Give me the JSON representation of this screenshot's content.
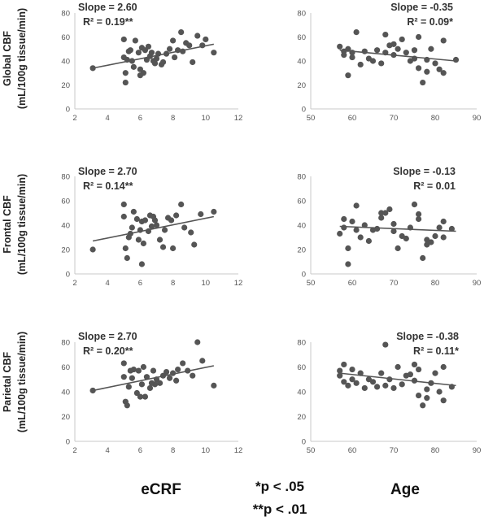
{
  "row_labels": [
    {
      "line1": "Global CBF",
      "line2": "(mL/100g tissue/min)"
    },
    {
      "line1": "Frontal CBF",
      "line2": "(mL/100g tissue/min)"
    },
    {
      "line1": "Parietal CBF",
      "line2": "(mL/100g tissue/min)"
    }
  ],
  "column_labels": {
    "ecrf": "eCRF",
    "age": "Age"
  },
  "significance": {
    "line1": "*p < .05",
    "line2": "**p < .01"
  },
  "colors": {
    "points": "#555555",
    "trend": "#555555",
    "axis": "#c8c8c8"
  },
  "chart_data": [
    {
      "type": "scatter",
      "region": "Global CBF",
      "predictor": "eCRF",
      "xlim": [
        2,
        12
      ],
      "xticks": [
        2,
        4,
        6,
        8,
        10,
        12
      ],
      "ylim": [
        0,
        80
      ],
      "yticks": [
        0,
        20,
        40,
        60,
        80
      ],
      "slope_label": "Slope = 2.60",
      "r2_label": "R² = 0.19**",
      "trend": {
        "x1": 3.1,
        "y1": 34,
        "x2": 10.5,
        "y2": 54
      },
      "points": [
        [
          3.1,
          34
        ],
        [
          5.0,
          58
        ],
        [
          5.0,
          43
        ],
        [
          5.1,
          30
        ],
        [
          5.1,
          22
        ],
        [
          5.2,
          41
        ],
        [
          5.3,
          48
        ],
        [
          5.4,
          49
        ],
        [
          5.5,
          40
        ],
        [
          5.6,
          35
        ],
        [
          5.7,
          57
        ],
        [
          5.9,
          47
        ],
        [
          6.0,
          28
        ],
        [
          6.0,
          33
        ],
        [
          6.1,
          51
        ],
        [
          6.2,
          30
        ],
        [
          6.3,
          49
        ],
        [
          6.4,
          41
        ],
        [
          6.5,
          52
        ],
        [
          6.6,
          44
        ],
        [
          6.7,
          47
        ],
        [
          6.8,
          40
        ],
        [
          6.9,
          38
        ],
        [
          7.0,
          42
        ],
        [
          7.1,
          46
        ],
        [
          7.3,
          37
        ],
        [
          7.4,
          39
        ],
        [
          7.6,
          46
        ],
        [
          7.8,
          50
        ],
        [
          8.0,
          57
        ],
        [
          8.1,
          43
        ],
        [
          8.3,
          49
        ],
        [
          8.5,
          64
        ],
        [
          8.6,
          48
        ],
        [
          8.8,
          55
        ],
        [
          9.0,
          53
        ],
        [
          9.2,
          39
        ],
        [
          9.5,
          61
        ],
        [
          9.8,
          53
        ],
        [
          10.0,
          58
        ],
        [
          10.5,
          47
        ]
      ]
    },
    {
      "type": "scatter",
      "region": "Global CBF",
      "predictor": "Age",
      "xlim": [
        50,
        90
      ],
      "xticks": [
        50,
        60,
        70,
        80,
        90
      ],
      "ylim": [
        0,
        80
      ],
      "yticks": [
        0,
        20,
        40,
        60,
        80
      ],
      "slope_label": "Slope = -0.35",
      "r2_label": "R² = 0.09*",
      "trend": {
        "x1": 57,
        "y1": 49,
        "x2": 85,
        "y2": 40
      },
      "points": [
        [
          57,
          52
        ],
        [
          58,
          48
        ],
        [
          58,
          45
        ],
        [
          59,
          50
        ],
        [
          59,
          28
        ],
        [
          60,
          47
        ],
        [
          60,
          43
        ],
        [
          61,
          64
        ],
        [
          62,
          37
        ],
        [
          63,
          48
        ],
        [
          64,
          42
        ],
        [
          65,
          40
        ],
        [
          66,
          49
        ],
        [
          67,
          38
        ],
        [
          68,
          47
        ],
        [
          68,
          62
        ],
        [
          69,
          53
        ],
        [
          70,
          45
        ],
        [
          70,
          54
        ],
        [
          71,
          50
        ],
        [
          72,
          58
        ],
        [
          73,
          47
        ],
        [
          74,
          40
        ],
        [
          75,
          49
        ],
        [
          75,
          42
        ],
        [
          76,
          60
        ],
        [
          76,
          34
        ],
        [
          77,
          22
        ],
        [
          78,
          41
        ],
        [
          78,
          31
        ],
        [
          79,
          50
        ],
        [
          80,
          38
        ],
        [
          81,
          33
        ],
        [
          82,
          30
        ],
        [
          82,
          57
        ],
        [
          85,
          41
        ]
      ]
    },
    {
      "type": "scatter",
      "region": "Frontal CBF",
      "predictor": "eCRF",
      "xlim": [
        2,
        12
      ],
      "xticks": [
        2,
        4,
        6,
        8,
        10,
        12
      ],
      "ylim": [
        0,
        80
      ],
      "yticks": [
        0,
        20,
        40,
        60,
        80
      ],
      "slope_label": "Slope = 2.70",
      "r2_label": "R² = 0.14**",
      "trend": {
        "x1": 3.1,
        "y1": 27,
        "x2": 10.5,
        "y2": 47
      },
      "points": [
        [
          3.1,
          20
        ],
        [
          5.0,
          57
        ],
        [
          5.0,
          47
        ],
        [
          5.1,
          21
        ],
        [
          5.2,
          13
        ],
        [
          5.3,
          30
        ],
        [
          5.4,
          33
        ],
        [
          5.5,
          38
        ],
        [
          5.6,
          51
        ],
        [
          5.8,
          45
        ],
        [
          5.9,
          28
        ],
        [
          6.0,
          36
        ],
        [
          6.1,
          8
        ],
        [
          6.1,
          43
        ],
        [
          6.2,
          25
        ],
        [
          6.3,
          44
        ],
        [
          6.5,
          35
        ],
        [
          6.6,
          48
        ],
        [
          6.7,
          39
        ],
        [
          6.8,
          47
        ],
        [
          6.9,
          44
        ],
        [
          7.0,
          40
        ],
        [
          7.2,
          28
        ],
        [
          7.4,
          22
        ],
        [
          7.5,
          36
        ],
        [
          7.7,
          46
        ],
        [
          7.9,
          44
        ],
        [
          8.0,
          21
        ],
        [
          8.2,
          48
        ],
        [
          8.5,
          57
        ],
        [
          8.7,
          38
        ],
        [
          9.1,
          34
        ],
        [
          9.3,
          24
        ],
        [
          9.7,
          49
        ],
        [
          10.5,
          51
        ]
      ]
    },
    {
      "type": "scatter",
      "region": "Frontal CBF",
      "predictor": "Age",
      "xlim": [
        50,
        90
      ],
      "xticks": [
        50,
        60,
        70,
        80,
        90
      ],
      "ylim": [
        0,
        80
      ],
      "yticks": [
        0,
        20,
        40,
        60,
        80
      ],
      "slope_label": "Slope = -0.13",
      "r2_label": "R² = 0.01",
      "trend": {
        "x1": 57,
        "y1": 39,
        "x2": 85,
        "y2": 35
      },
      "points": [
        [
          57,
          33
        ],
        [
          58,
          45
        ],
        [
          58,
          38
        ],
        [
          59,
          8
        ],
        [
          59,
          21
        ],
        [
          60,
          43
        ],
        [
          61,
          56
        ],
        [
          61,
          36
        ],
        [
          62,
          30
        ],
        [
          63,
          40
        ],
        [
          64,
          27
        ],
        [
          65,
          36
        ],
        [
          66,
          37
        ],
        [
          67,
          46
        ],
        [
          67,
          50
        ],
        [
          68,
          50
        ],
        [
          69,
          53
        ],
        [
          70,
          41
        ],
        [
          70,
          35
        ],
        [
          71,
          21
        ],
        [
          72,
          31
        ],
        [
          73,
          29
        ],
        [
          74,
          38
        ],
        [
          75,
          57
        ],
        [
          76,
          49
        ],
        [
          76,
          45
        ],
        [
          77,
          13
        ],
        [
          78,
          28
        ],
        [
          78,
          24
        ],
        [
          79,
          26
        ],
        [
          80,
          31
        ],
        [
          81,
          38
        ],
        [
          82,
          30
        ],
        [
          82,
          43
        ],
        [
          84,
          37
        ]
      ]
    },
    {
      "type": "scatter",
      "region": "Parietal CBF",
      "predictor": "eCRF",
      "xlim": [
        2,
        12
      ],
      "xticks": [
        2,
        4,
        6,
        8,
        10,
        12
      ],
      "ylim": [
        0,
        80
      ],
      "yticks": [
        0,
        20,
        40,
        60,
        80
      ],
      "slope_label": "Slope = 2.70",
      "r2_label": "R² = 0.20**",
      "trend": {
        "x1": 3.1,
        "y1": 41,
        "x2": 10.5,
        "y2": 61
      },
      "points": [
        [
          3.1,
          41
        ],
        [
          5.0,
          63
        ],
        [
          5.0,
          52
        ],
        [
          5.1,
          32
        ],
        [
          5.2,
          29
        ],
        [
          5.3,
          44
        ],
        [
          5.4,
          57
        ],
        [
          5.5,
          51
        ],
        [
          5.6,
          58
        ],
        [
          5.8,
          39
        ],
        [
          5.9,
          57
        ],
        [
          6.0,
          36
        ],
        [
          6.1,
          46
        ],
        [
          6.2,
          60
        ],
        [
          6.3,
          36
        ],
        [
          6.4,
          52
        ],
        [
          6.6,
          43
        ],
        [
          6.7,
          47
        ],
        [
          6.8,
          57
        ],
        [
          6.9,
          46
        ],
        [
          7.0,
          50
        ],
        [
          7.2,
          47
        ],
        [
          7.4,
          53
        ],
        [
          7.6,
          56
        ],
        [
          7.8,
          51
        ],
        [
          8.0,
          55
        ],
        [
          8.2,
          49
        ],
        [
          8.3,
          58
        ],
        [
          8.6,
          63
        ],
        [
          8.9,
          57
        ],
        [
          9.2,
          53
        ],
        [
          9.5,
          80
        ],
        [
          9.8,
          65
        ],
        [
          10.5,
          45
        ]
      ]
    },
    {
      "type": "scatter",
      "region": "Parietal CBF",
      "predictor": "Age",
      "xlim": [
        50,
        90
      ],
      "xticks": [
        50,
        60,
        70,
        80,
        90
      ],
      "ylim": [
        0,
        80
      ],
      "yticks": [
        0,
        20,
        40,
        60,
        80
      ],
      "slope_label": "Slope = -0.38",
      "r2_label": "R² = 0.11*",
      "trend": {
        "x1": 57,
        "y1": 55,
        "x2": 85,
        "y2": 45
      },
      "points": [
        [
          57,
          57
        ],
        [
          57,
          53
        ],
        [
          58,
          62
        ],
        [
          58,
          48
        ],
        [
          59,
          45
        ],
        [
          60,
          50
        ],
        [
          60,
          58
        ],
        [
          61,
          47
        ],
        [
          62,
          55
        ],
        [
          63,
          43
        ],
        [
          64,
          50
        ],
        [
          65,
          48
        ],
        [
          66,
          44
        ],
        [
          67,
          55
        ],
        [
          68,
          45
        ],
        [
          68,
          78
        ],
        [
          69,
          50
        ],
        [
          70,
          43
        ],
        [
          71,
          60
        ],
        [
          72,
          46
        ],
        [
          73,
          53
        ],
        [
          74,
          54
        ],
        [
          75,
          49
        ],
        [
          75,
          62
        ],
        [
          76,
          37
        ],
        [
          76,
          58
        ],
        [
          77,
          29
        ],
        [
          78,
          35
        ],
        [
          78,
          42
        ],
        [
          79,
          47
        ],
        [
          80,
          55
        ],
        [
          81,
          40
        ],
        [
          82,
          33
        ],
        [
          82,
          60
        ],
        [
          84,
          44
        ]
      ]
    }
  ]
}
